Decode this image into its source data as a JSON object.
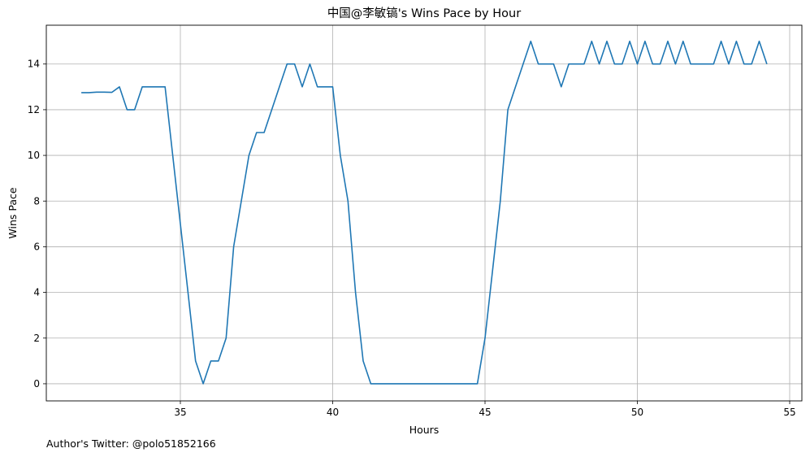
{
  "chart_data": {
    "type": "line",
    "title": "中国@李敏镐's Wins Pace by Hour",
    "xlabel": "Hours",
    "ylabel": "Wins Pace",
    "xlim": [
      30.6,
      55.4
    ],
    "ylim": [
      -0.75,
      15.7
    ],
    "x_ticks": [
      35,
      40,
      45,
      50,
      55
    ],
    "y_ticks": [
      0,
      2,
      4,
      6,
      8,
      10,
      12,
      14
    ],
    "grid": true,
    "line_color": "#1f77b4",
    "series": [
      {
        "x": [
          31.75,
          32.0,
          32.25,
          32.5,
          32.75,
          33.0,
          33.25,
          33.5,
          33.75,
          34.0,
          34.25,
          34.5,
          34.75,
          35.0,
          35.25,
          35.5,
          35.75,
          36.0,
          36.25,
          36.5,
          36.75,
          37.0,
          37.25,
          37.5,
          37.75,
          38.0,
          38.25,
          38.5,
          38.75,
          39.0,
          39.25,
          39.5,
          39.75,
          40.0,
          40.25,
          40.5,
          40.75,
          41.0,
          41.25,
          41.5,
          41.75,
          42.0,
          42.25,
          42.5,
          42.75,
          43.0,
          43.25,
          43.5,
          43.75,
          44.0,
          44.25,
          44.5,
          44.75,
          45.0,
          45.25,
          45.5,
          45.75,
          46.0,
          46.25,
          46.5,
          46.75,
          47.0,
          47.25,
          47.5,
          47.75,
          48.0,
          48.25,
          48.5,
          48.75,
          49.0,
          49.25,
          49.5,
          49.75,
          50.0,
          50.25,
          50.5,
          50.75,
          51.0,
          51.25,
          51.5,
          51.75,
          52.0,
          52.25,
          52.5,
          52.75,
          53.0,
          53.25,
          53.5,
          53.75,
          54.0,
          54.25
        ],
        "y": [
          12.75,
          12.75,
          12.77,
          12.77,
          12.76,
          13,
          12,
          12,
          13,
          13,
          13,
          13,
          10,
          7,
          4,
          1,
          0,
          1,
          1,
          2,
          6,
          8,
          10,
          11,
          11,
          12,
          13,
          14,
          14,
          13,
          14,
          13,
          13,
          13,
          10,
          8,
          4,
          1,
          0,
          0,
          0,
          0,
          0,
          0,
          0,
          0,
          0,
          0,
          0,
          0,
          0,
          0,
          0,
          2,
          5,
          8,
          12,
          13,
          14,
          15,
          14,
          14,
          14,
          13,
          14,
          14,
          14,
          15,
          14,
          15,
          14,
          14,
          15,
          14,
          15,
          14,
          14,
          15,
          14,
          15,
          14,
          14,
          14,
          14,
          15,
          14,
          15,
          14,
          14,
          15,
          14
        ]
      }
    ]
  },
  "footer": {
    "note": "Author's Twitter: @polo51852166"
  }
}
